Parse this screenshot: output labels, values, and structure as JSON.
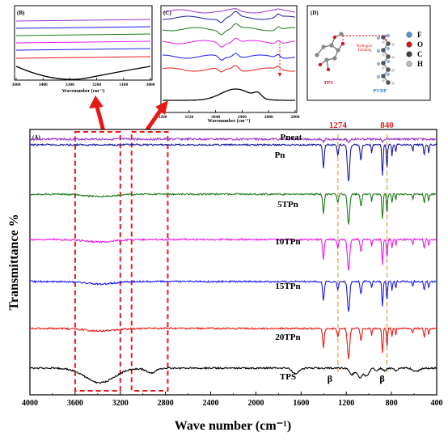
{
  "panels": {
    "A": "(A)",
    "B": "(B)",
    "C": "(C)",
    "D": "(D)"
  },
  "colors": {
    "Pneat": "#9933cc",
    "Pn": "#1a1aa0",
    "5TPn": "#1a7a1a",
    "10TPn": "#e619e6",
    "15TPn": "#1a1aee",
    "20TPn": "#e61919",
    "TPS": "#000000",
    "annotation": "#e61919",
    "guide": "#f0a050"
  },
  "chart_data": [
    {
      "type": "line",
      "panel": "A",
      "xlabel": "Wave number (cm⁻¹)",
      "ylabel": "Transmittance %",
      "xlim": [
        4000,
        400
      ],
      "xticks": [
        4000,
        3600,
        3200,
        2800,
        2400,
        2000,
        1600,
        1200,
        800,
        400
      ],
      "series": [
        {
          "name": "Pneat"
        },
        {
          "name": "Pn"
        },
        {
          "name": "5TPn"
        },
        {
          "name": "10TPn"
        },
        {
          "name": "15TPn"
        },
        {
          "name": "20TPn"
        },
        {
          "name": "TPS"
        }
      ],
      "peak_markers": [
        {
          "label": "1274",
          "x": 1274
        },
        {
          "label": "840",
          "x": 840
        }
      ],
      "beta_labels": [
        "β",
        "β"
      ],
      "highlight_regions": [
        [
          3600,
          3200
        ],
        [
          3100,
          2780
        ]
      ]
    },
    {
      "type": "line",
      "panel": "B",
      "xlabel": "Wavenumber (cm⁻¹)",
      "xlim": [
        3600,
        3000
      ],
      "xticks": [
        3600,
        3400,
        3300,
        3200,
        3100,
        3000
      ],
      "tick_labels": [
        "3600",
        "3400",
        "3300",
        "3200",
        "3100",
        "3000"
      ]
    },
    {
      "type": "line",
      "panel": "C",
      "xlabel": "Wavenumber (cm⁻¹)",
      "xlim": [
        3200,
        2800
      ],
      "xticks": [
        3200,
        3120,
        3040,
        2960,
        2880,
        2800
      ],
      "tick_labels": [
        "3200",
        "3120",
        "3040",
        "2960",
        "2880",
        "2800"
      ]
    }
  ],
  "panel_d": {
    "hbond_label": "Hydrogen\nBonding",
    "tps_label": "TPS",
    "pvdf_label": "PVDF",
    "legend": [
      {
        "symbol": "F",
        "color": "#5b8fd6"
      },
      {
        "symbol": "O",
        "color": "#cc1a1a"
      },
      {
        "symbol": "C",
        "color": "#444444"
      },
      {
        "symbol": "H",
        "color": "#bbbbbb"
      }
    ]
  }
}
